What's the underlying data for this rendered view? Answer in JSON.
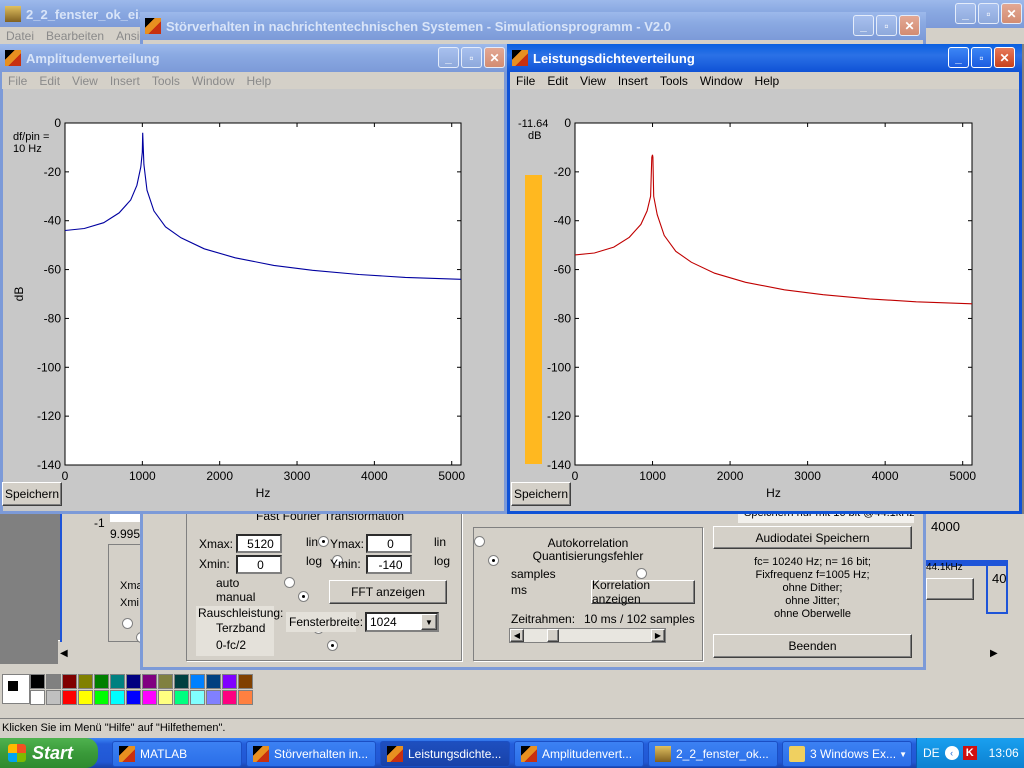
{
  "back_window": {
    "title": "2_2_fenster_ok_ei...",
    "menu": [
      "Datei",
      "Bearbeiten",
      "Ansicht"
    ]
  },
  "main_window": {
    "title": "Störverhalten in nachrichtentechnischen Systemen - Simulationsprogramm - V2.0"
  },
  "amplitude_window": {
    "title": "Amplitudenverteilung",
    "menu": [
      "File",
      "Edit",
      "View",
      "Insert",
      "Tools",
      "Window",
      "Help"
    ],
    "note": "df/pin =\n10 Hz",
    "save_label": "Speichern"
  },
  "psd_window": {
    "title": "Leistungsdichteverteilung",
    "menu": [
      "File",
      "Edit",
      "View",
      "Insert",
      "Tools",
      "Window",
      "Help"
    ],
    "level_value": "-11.64",
    "level_unit": "dB",
    "level_fraction": 0.92,
    "save_label": "Speichern"
  },
  "chart_data": [
    {
      "type": "line",
      "xlabel": "Hz",
      "ylabel": "dB",
      "xlim": [
        0,
        5120
      ],
      "ylim": [
        -140,
        0
      ],
      "xticks": [
        "0",
        "1000",
        "2000",
        "3000",
        "4000",
        "5000"
      ],
      "yticks": [
        "0",
        "-20",
        "-40",
        "-60",
        "-80",
        "-100",
        "-120",
        "-140"
      ],
      "grid": false,
      "color": "#0000a0",
      "series": [
        {
          "x": [
            0,
            250,
            500,
            700,
            850,
            930,
            980,
            1000,
            1005,
            1020,
            1060,
            1150,
            1300,
            1500,
            1800,
            2200,
            2700,
            3200,
            3800,
            4400,
            5120
          ],
          "y": [
            -44,
            -43.2,
            -40.8,
            -36.8,
            -31.5,
            -25.5,
            -18,
            -12,
            -4,
            -17,
            -27.5,
            -36,
            -42.5,
            -47,
            -51.5,
            -55.2,
            -58.3,
            -60.3,
            -62,
            -63.2,
            -64
          ]
        }
      ]
    },
    {
      "type": "line",
      "xlabel": "Hz",
      "ylabel": "",
      "xlim": [
        0,
        5120
      ],
      "ylim": [
        -140,
        0
      ],
      "xticks": [
        "0",
        "1000",
        "2000",
        "3000",
        "4000",
        "5000"
      ],
      "yticks": [
        "0",
        "-20",
        "-40",
        "-60",
        "-80",
        "-100",
        "-120",
        "-140"
      ],
      "grid": false,
      "color": "#c00000",
      "series": [
        {
          "x": [
            0,
            250,
            500,
            700,
            850,
            930,
            975,
            990,
            1000,
            1005,
            1015,
            1060,
            1150,
            1300,
            1500,
            1800,
            2200,
            2700,
            3200,
            3800,
            4400,
            5120
          ],
          "y": [
            -54,
            -53.2,
            -50.8,
            -46.8,
            -41.5,
            -36,
            -30,
            -14,
            -13,
            -14,
            -30,
            -37.5,
            -46,
            -52.5,
            -57,
            -61.5,
            -65.2,
            -68.3,
            -70.3,
            -72,
            -73.2,
            -74
          ]
        }
      ]
    }
  ],
  "controls": {
    "fft_title": "Fast Fourier Transformation",
    "xmax_label": "Xmax:",
    "xmax_value": "5120",
    "xmin_label": "Xmin:",
    "xmin_value": "0",
    "ymax_label": "Ymax:",
    "ymax_value": "0",
    "ymin_label": "Ymin:",
    "ymin_value": "-140",
    "lin": "lin",
    "log": "log",
    "auto": "auto",
    "manual": "manual",
    "rausch_label": "Rauschleistung:",
    "terzband": "Terzband",
    "fc2": "0-fc/2",
    "fenster_label": "Fensterbreite:",
    "fenster_value": "1024",
    "fft_button": "FFT anzeigen",
    "auto_title": "Autokorrelation\nQuantisierungsfehler",
    "samples": "samples",
    "ms": "ms",
    "korr_button": "Korrelation anzeigen",
    "zeitrahmen_label": "Zeitrahmen:",
    "zeitrahmen_value": "10 ms / 102 samples",
    "slider_fraction": 0.2,
    "save_note": "Speichern nur mit 16 bit @44.1kHz",
    "audio_button": "Audiodatei Speichern",
    "info": "fc= 10240 Hz; n= 16 bit;\nFixfrequenz f=1005 Hz;\nohne Dither;\nohne Jitter;\nohne Oberwelle",
    "beenden_button": "Beenden",
    "right_value": "4000",
    "right_small": "44.1kHz",
    "left_minus1": "-1",
    "left_value": "9.995",
    "left_xma": "Xma",
    "left_xmi": "Xmi",
    "right_40": "40"
  },
  "status_bar": {
    "text": "Klicken Sie im Menü \"Hilfe\" auf \"Hilfethemen\"."
  },
  "taskbar": {
    "start": "Start",
    "items": [
      "MATLAB",
      "Störverhalten in...",
      "Leistungsdichte...",
      "Amplitudenvert...",
      "2_2_fenster_ok...",
      "3 Windows Ex..."
    ],
    "lang": "DE",
    "time": "13:06"
  },
  "palette_colors": [
    "#000000",
    "#808080",
    "#800000",
    "#808000",
    "#008000",
    "#008080",
    "#000080",
    "#800080",
    "#808040",
    "#004040",
    "#0080ff",
    "#004080",
    "#8000ff",
    "#804000",
    "#ffffff",
    "#c0c0c0",
    "#ff0000",
    "#ffff00",
    "#00ff00",
    "#00ffff",
    "#0000ff",
    "#ff00ff",
    "#ffff80",
    "#00ff80",
    "#80ffff",
    "#8080ff",
    "#ff0080",
    "#ff8040"
  ]
}
